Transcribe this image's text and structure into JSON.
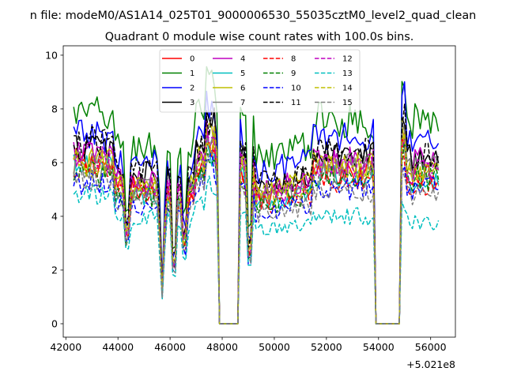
{
  "chart_data": {
    "type": "line",
    "suptitle": "n file: modeM0/AS1A14_025T01_9000006530_55035cztM0_level2_quad_clean",
    "title": "Quadrant 0 module wise count rates with 100.0s bins.",
    "xlabel": "",
    "ylabel": "",
    "x_offset_label": "+5.021e8",
    "xlim": [
      41900,
      56950
    ],
    "ylim": [
      -0.5,
      10.35
    ],
    "xticks": [
      42000,
      44000,
      46000,
      48000,
      50000,
      52000,
      54000,
      56000
    ],
    "xtick_labels": [
      "42000",
      "44000",
      "46000",
      "48000",
      "50000",
      "52000",
      "54000",
      "56000"
    ],
    "yticks": [
      0,
      2,
      4,
      6,
      8,
      10
    ],
    "ytick_labels": [
      "0",
      "2",
      "4",
      "6",
      "8",
      "10"
    ],
    "legend_position": "upper-center",
    "gaps": [
      {
        "start": 47900,
        "end": 48600
      },
      {
        "start": 53900,
        "end": 54800
      }
    ],
    "dips": [
      {
        "x": 44350,
        "depth": 0.5
      },
      {
        "x": 45700,
        "depth": 0.78
      },
      {
        "x": 46150,
        "depth": 0.8
      },
      {
        "x": 46550,
        "depth": 0.55
      },
      {
        "x": 49050,
        "depth": 0.78
      }
    ],
    "series": [
      {
        "name": "0",
        "color": "#ff0000",
        "dash": "solid",
        "base_start": 6.0,
        "base_end": 5.6
      },
      {
        "name": "1",
        "color": "#008000",
        "dash": "solid",
        "base_start": 7.8,
        "base_end": 7.5
      },
      {
        "name": "2",
        "color": "#0000ff",
        "dash": "solid",
        "base_start": 7.0,
        "base_end": 7.0
      },
      {
        "name": "3",
        "color": "#000000",
        "dash": "solid",
        "base_start": 6.6,
        "base_end": 6.2
      },
      {
        "name": "4",
        "color": "#bf00bf",
        "dash": "solid",
        "base_start": 6.3,
        "base_end": 6.0
      },
      {
        "name": "5",
        "color": "#00bfbf",
        "dash": "solid",
        "base_start": 5.8,
        "base_end": 5.3
      },
      {
        "name": "6",
        "color": "#bfbf00",
        "dash": "solid",
        "base_start": 6.1,
        "base_end": 5.9
      },
      {
        "name": "7",
        "color": "#808080",
        "dash": "solid",
        "base_start": 5.9,
        "base_end": 5.8
      },
      {
        "name": "8",
        "color": "#ff0000",
        "dash": "dashed",
        "base_start": 5.8,
        "base_end": 5.2
      },
      {
        "name": "9",
        "color": "#008000",
        "dash": "dashed",
        "base_start": 5.6,
        "base_end": 5.4
      },
      {
        "name": "10",
        "color": "#0000ff",
        "dash": "dashed",
        "base_start": 5.3,
        "base_end": 5.0
      },
      {
        "name": "11",
        "color": "#000000",
        "dash": "dashed",
        "base_start": 6.8,
        "base_end": 6.3
      },
      {
        "name": "12",
        "color": "#bf00bf",
        "dash": "dashed",
        "base_start": 6.2,
        "base_end": 5.7
      },
      {
        "name": "13",
        "color": "#00bfbf",
        "dash": "dashed",
        "base_start": 4.8,
        "base_end": 3.8
      },
      {
        "name": "14",
        "color": "#bfbf00",
        "dash": "dashed",
        "base_start": 6.0,
        "base_end": 5.8
      },
      {
        "name": "15",
        "color": "#808080",
        "dash": "dashed",
        "base_start": 5.5,
        "base_end": 4.8
      }
    ]
  }
}
